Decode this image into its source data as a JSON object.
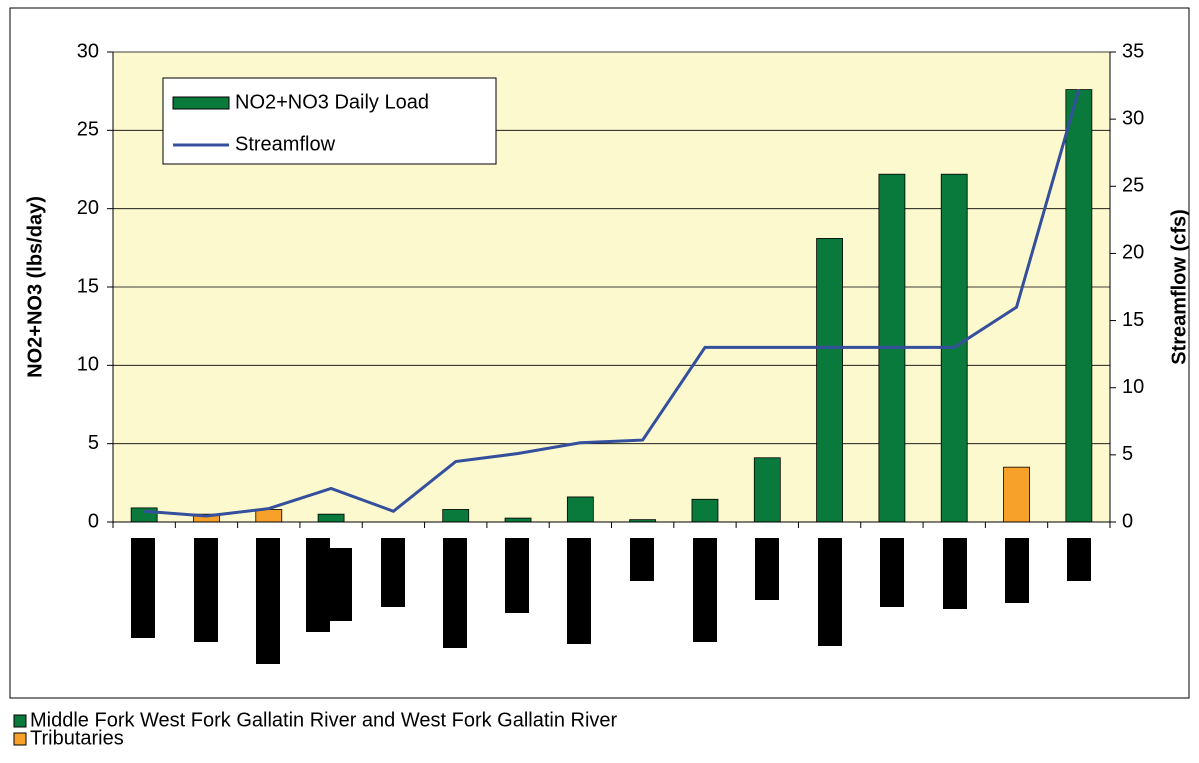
{
  "chart_data": {
    "type": "bar_line",
    "y_label": "NO2+NO3 (lbs/day)",
    "y2_label": "Streamflow (cfs)",
    "categories": [
      null,
      null,
      null,
      null,
      null,
      null,
      null,
      null,
      null,
      null,
      null,
      null,
      null,
      null,
      null,
      null
    ],
    "series": [
      {
        "name": "NO2+NO3 Daily Load",
        "type": "bar",
        "color": "#0a7a3c",
        "values": [
          0.9,
          0.5,
          0.8,
          0.5,
          0,
          0.8,
          0.25,
          1.6,
          0.15,
          1.45,
          4.1,
          18.1,
          22.2,
          22.2,
          3.5,
          27.6
        ],
        "colors": [
          "#0a7a3c",
          "#f7a12b",
          "#f7a12b",
          "#0a7a3c",
          "#0a7a3c",
          "#0a7a3c",
          "#0a7a3c",
          "#0a7a3c",
          "#0a7a3c",
          "#0a7a3c",
          "#0a7a3c",
          "#0a7a3c",
          "#0a7a3c",
          "#0a7a3c",
          "#f7a12b",
          "#0a7a3c"
        ]
      },
      {
        "name": "Streamflow",
        "type": "line",
        "color": "#34509c",
        "axis": "y2",
        "values": [
          0.8,
          0.45,
          1.0,
          2.5,
          0.8,
          4.5,
          5.1,
          5.9,
          6.1,
          13,
          13,
          13,
          13,
          13,
          16,
          32.2
        ]
      }
    ],
    "color_legend": [
      {
        "label": "Middle Fork West Fork Gallatin River and West Fork Gallatin River",
        "color": "#0a7a3c"
      },
      {
        "label": "Tributaries",
        "color": "#f7a12b"
      }
    ],
    "ylim": [
      0,
      30
    ],
    "yticks": [
      0,
      5,
      10,
      15,
      20,
      25,
      30
    ],
    "y2lim": [
      0,
      35
    ],
    "y2ticks": [
      0,
      5,
      10,
      15,
      20,
      25,
      30,
      35
    ],
    "grid": true,
    "plot_background": "#fdf9cf"
  }
}
